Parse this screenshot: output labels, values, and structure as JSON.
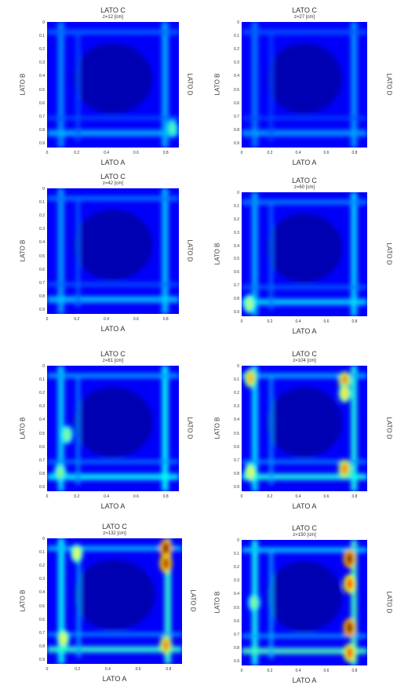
{
  "chart_data": [
    {
      "type": "heatmap",
      "title": "z=12 [cm]",
      "top_label": "LATO C",
      "xlabel": "LATO A",
      "ylabel": "LATO B",
      "right_label": "LATO D",
      "xticks": [
        "0",
        "0.2",
        "0.4",
        "0.6",
        "0.8"
      ],
      "yticks": [
        "0",
        "0.1",
        "0.2",
        "0.3",
        "0.4",
        "0.5",
        "0.6",
        "0.7",
        "0.8",
        "0.9"
      ],
      "colorscale": "jet",
      "intensity": 0.25,
      "hotspots": [
        {
          "x": 0.95,
          "y": 0.85,
          "level": 0.45
        }
      ]
    },
    {
      "type": "heatmap",
      "title": "z=27 [cm]",
      "top_label": "LATO C",
      "xlabel": "LATO A",
      "ylabel": "LATO B",
      "right_label": "LATO D",
      "xticks": [
        "0",
        "0.2",
        "0.4",
        "0.6",
        "0.8"
      ],
      "yticks": [
        "0",
        "0.1",
        "0.2",
        "0.3",
        "0.4",
        "0.5",
        "0.6",
        "0.7",
        "0.8",
        "0.9"
      ],
      "colorscale": "jet",
      "intensity": 0.2,
      "hotspots": []
    },
    {
      "type": "heatmap",
      "title": "z=42 [cm]",
      "top_label": "LATO C",
      "xlabel": "LATO A",
      "ylabel": "LATO B",
      "right_label": "LATO D",
      "xticks": [
        "0",
        "0.2",
        "0.4",
        "0.6",
        "0.8"
      ],
      "yticks": [
        "0",
        "0.1",
        "0.2",
        "0.3",
        "0.4",
        "0.5",
        "0.6",
        "0.7",
        "0.8",
        "0.9"
      ],
      "colorscale": "jet",
      "intensity": 0.3,
      "hotspots": []
    },
    {
      "type": "heatmap",
      "title": "z=60 [cm]",
      "top_label": "LATO C",
      "xlabel": "LATO A",
      "ylabel": "LATO B",
      "right_label": "LATO D",
      "xticks": [
        "0",
        "0.2",
        "0.4",
        "0.6",
        "0.8"
      ],
      "yticks": [
        "0",
        "0.1",
        "0.2",
        "0.3",
        "0.4",
        "0.5",
        "0.6",
        "0.7",
        "0.8",
        "0.9"
      ],
      "colorscale": "jet",
      "intensity": 0.35,
      "hotspots": [
        {
          "x": 0.06,
          "y": 0.9,
          "level": 0.55
        }
      ]
    },
    {
      "type": "heatmap",
      "title": "z=81 [cm]",
      "top_label": "LATO C",
      "xlabel": "LATO A",
      "ylabel": "LATO B",
      "right_label": "LATO D",
      "xticks": [
        "0",
        "0.2",
        "0.4",
        "0.6",
        "0.8"
      ],
      "yticks": [
        "0",
        "0.1",
        "0.2",
        "0.3",
        "0.4",
        "0.5",
        "0.6",
        "0.7",
        "0.8",
        "0.9"
      ],
      "colorscale": "jet",
      "intensity": 0.45,
      "hotspots": [
        {
          "x": 0.15,
          "y": 0.55,
          "level": 0.5
        },
        {
          "x": 0.1,
          "y": 0.85,
          "level": 0.5
        }
      ]
    },
    {
      "type": "heatmap",
      "title": "z=104 [cm]",
      "top_label": "LATO C",
      "xlabel": "LATO A",
      "ylabel": "LATO B",
      "right_label": "LATO D",
      "xticks": [
        "0",
        "0.2",
        "0.4",
        "0.6",
        "0.8"
      ],
      "yticks": [
        "0",
        "0.1",
        "0.2",
        "0.3",
        "0.4",
        "0.5",
        "0.6",
        "0.7",
        "0.8",
        "0.9"
      ],
      "colorscale": "jet",
      "intensity": 0.5,
      "hotspots": [
        {
          "x": 0.07,
          "y": 0.1,
          "level": 0.7
        },
        {
          "x": 0.82,
          "y": 0.12,
          "level": 0.75
        },
        {
          "x": 0.82,
          "y": 0.22,
          "level": 0.65
        },
        {
          "x": 0.82,
          "y": 0.82,
          "level": 0.75
        },
        {
          "x": 0.07,
          "y": 0.85,
          "level": 0.6
        }
      ]
    },
    {
      "type": "heatmap",
      "title": "z=132 [cm]",
      "top_label": "LATO C",
      "xlabel": "LATO A",
      "ylabel": "LATO B",
      "right_label": "LATO D",
      "xticks": [
        "0",
        "0.2",
        "0.4",
        "0.6",
        "0.8"
      ],
      "yticks": [
        "0",
        "0.1",
        "0.2",
        "0.3",
        "0.4",
        "0.5",
        "0.6",
        "0.7",
        "0.8",
        "0.9"
      ],
      "colorscale": "jet",
      "intensity": 0.55,
      "hotspots": [
        {
          "x": 0.88,
          "y": 0.08,
          "level": 1.0
        },
        {
          "x": 0.88,
          "y": 0.2,
          "level": 0.95
        },
        {
          "x": 0.88,
          "y": 0.85,
          "level": 0.75
        },
        {
          "x": 0.12,
          "y": 0.8,
          "level": 0.6
        },
        {
          "x": 0.22,
          "y": 0.12,
          "level": 0.6
        }
      ]
    },
    {
      "type": "heatmap",
      "title": "z=150 [cm]",
      "top_label": "LATO C",
      "xlabel": "LATO A",
      "ylabel": "LATO B",
      "right_label": "LATO D",
      "xticks": [
        "0",
        "0.2",
        "0.4",
        "0.6",
        "0.8"
      ],
      "yticks": [
        "0",
        "0.1",
        "0.2",
        "0.3",
        "0.4",
        "0.5",
        "0.6",
        "0.7",
        "0.8",
        "0.9"
      ],
      "colorscale": "jet",
      "intensity": 0.6,
      "hotspots": [
        {
          "x": 0.86,
          "y": 0.15,
          "level": 1.0
        },
        {
          "x": 0.86,
          "y": 0.35,
          "level": 0.85
        },
        {
          "x": 0.86,
          "y": 0.7,
          "level": 1.0
        },
        {
          "x": 0.86,
          "y": 0.9,
          "level": 0.8
        },
        {
          "x": 0.1,
          "y": 0.5,
          "level": 0.5
        }
      ]
    }
  ]
}
